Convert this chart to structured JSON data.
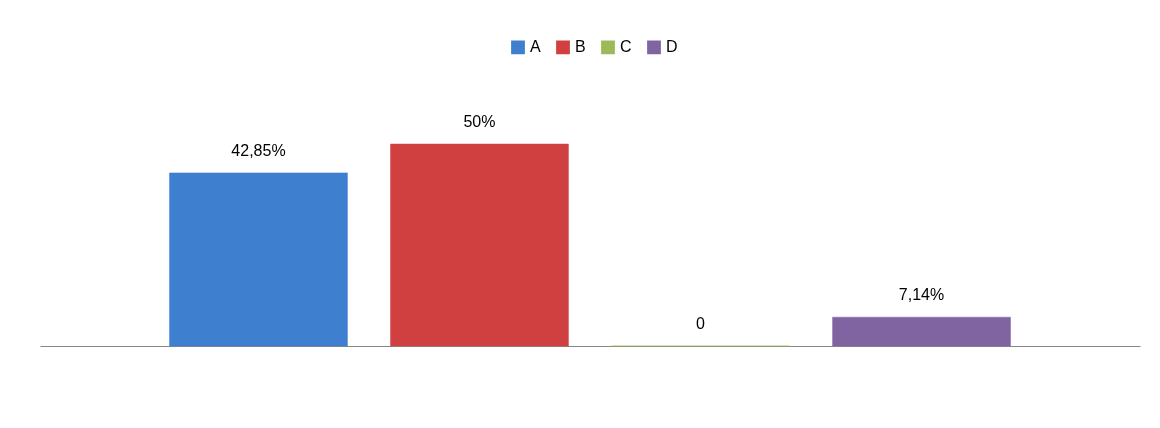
{
  "chart_data": {
    "type": "bar",
    "categories": [
      null
    ],
    "series": [
      {
        "name": "A",
        "color": "#3f7fcf",
        "values": [
          42.85
        ],
        "value_labels": [
          "42,85%"
        ]
      },
      {
        "name": "B",
        "color": "#d04040",
        "values": [
          50
        ],
        "value_labels": [
          "50%"
        ]
      },
      {
        "name": "C",
        "color": "#9bbb59",
        "values": [
          0
        ],
        "value_labels": [
          "0"
        ]
      },
      {
        "name": "D",
        "color": "#8064a2",
        "values": [
          7.14
        ],
        "value_labels": [
          "7,14%"
        ]
      }
    ],
    "legend": "top",
    "tick_labels": false
  }
}
